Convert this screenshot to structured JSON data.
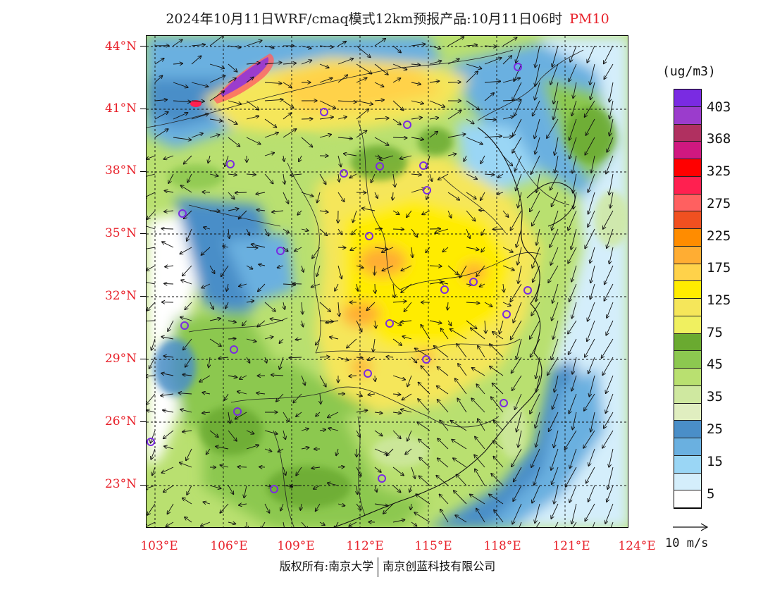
{
  "title": {
    "main": "2024年10月11日WRF/cmaq模式12km预报产品:10月11日06时",
    "pollutant": "PM10"
  },
  "map": {
    "lat_labels": [
      "44°N",
      "41°N",
      "38°N",
      "35°N",
      "32°N",
      "29°N",
      "26°N",
      "23°N"
    ],
    "lon_labels": [
      "103°E",
      "106°E",
      "109°E",
      "112°E",
      "115°E",
      "118°E",
      "121°E",
      "124°E"
    ],
    "lon_range": [
      103,
      124
    ],
    "lat_range": [
      21.5,
      44.3
    ]
  },
  "legend": {
    "unit": "(ug/m3)",
    "labels": [
      "403",
      "368",
      "325",
      "275",
      "225",
      "175",
      "125",
      "75",
      "45",
      "35",
      "25",
      "15",
      "5"
    ],
    "colors": [
      "#7a2be2",
      "#9b3ccc",
      "#b03060",
      "#d01880",
      "#ff0000",
      "#ff2050",
      "#ff6060",
      "#f05020",
      "#ff8c00",
      "#ffad33",
      "#ffd24a",
      "#ffec00",
      "#f5e65a",
      "#f0f060",
      "#6aaa30",
      "#8cc850",
      "#b9e070",
      "#cfe8a0",
      "#e0eec0",
      "#4a8ec8",
      "#6ab0e0",
      "#9ad6f5",
      "#d4eefb",
      "#ffffff"
    ]
  },
  "wind": {
    "reference_label": "10 m/s"
  },
  "stations_color": "#7a2be2",
  "footer": {
    "left": "版权所有:南京大学",
    "right": "南京创蓝科技有限公司"
  }
}
